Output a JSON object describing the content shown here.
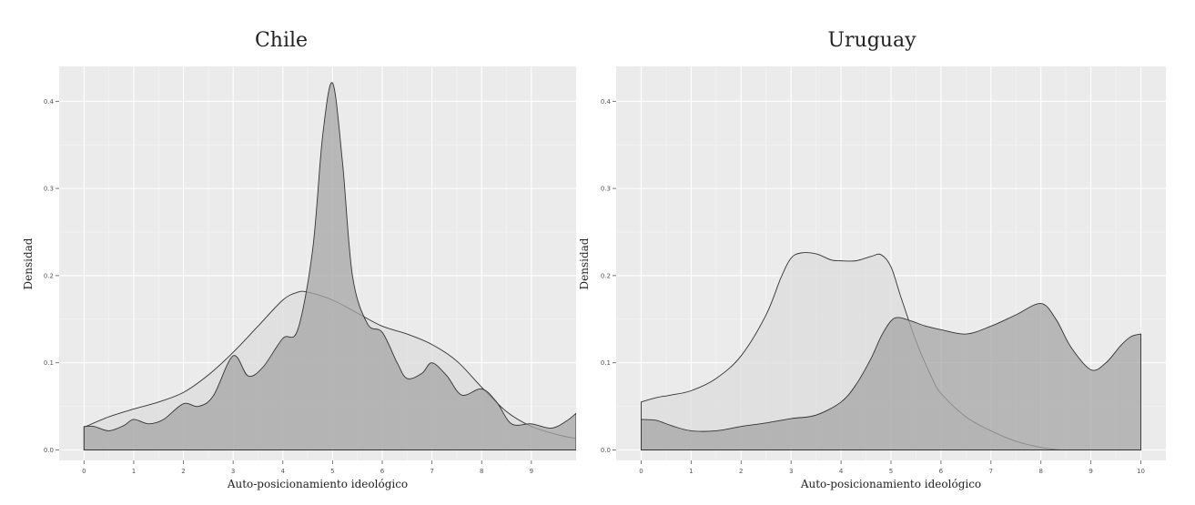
{
  "chart_data": [
    {
      "type": "area",
      "title": "Chile",
      "xlabel": "Auto-posicionamiento ideológico",
      "ylabel": "Densidad",
      "xlim": [
        -0.5,
        9.9
      ],
      "ylim": [
        -0.012,
        0.44
      ],
      "x_ticks": [
        0,
        1,
        2,
        3,
        4,
        5,
        6,
        7,
        8,
        9
      ],
      "y_ticks": [
        0.0,
        0.1,
        0.2,
        0.3,
        0.4
      ],
      "x_tick_labels": [
        "0",
        "1",
        "2",
        "3",
        "4",
        "5",
        "6",
        "7",
        "8",
        "9"
      ],
      "y_tick_labels": [
        "0.0",
        "0.1",
        "0.2",
        "0.3",
        "0.4"
      ],
      "grid": true,
      "series": [
        {
          "fill": "#dcdcdc",
          "x": [
            0,
            0.5,
            1,
            1.5,
            2,
            2.5,
            3,
            3.5,
            4,
            4.3,
            4.5,
            5,
            5.5,
            6,
            6.5,
            7,
            7.5,
            8,
            8.5,
            9,
            9.5,
            9.9
          ],
          "y": [
            0.026,
            0.038,
            0.047,
            0.055,
            0.066,
            0.086,
            0.112,
            0.142,
            0.172,
            0.181,
            0.181,
            0.172,
            0.157,
            0.142,
            0.133,
            0.121,
            0.102,
            0.072,
            0.044,
            0.027,
            0.018,
            0.013
          ]
        },
        {
          "fill": "#a6a6a6",
          "x": [
            0,
            0.2,
            0.5,
            0.8,
            1,
            1.3,
            1.6,
            2,
            2.3,
            2.6,
            3,
            3.3,
            3.6,
            4,
            4.3,
            4.6,
            4.8,
            5,
            5.2,
            5.4,
            5.7,
            6,
            6.3,
            6.5,
            6.8,
            7,
            7.3,
            7.6,
            8,
            8.3,
            8.6,
            9,
            9.4,
            9.7,
            9.9
          ],
          "y": [
            0.027,
            0.027,
            0.022,
            0.028,
            0.035,
            0.03,
            0.035,
            0.053,
            0.05,
            0.062,
            0.108,
            0.085,
            0.095,
            0.128,
            0.138,
            0.23,
            0.36,
            0.421,
            0.33,
            0.2,
            0.145,
            0.135,
            0.1,
            0.082,
            0.088,
            0.1,
            0.085,
            0.063,
            0.07,
            0.055,
            0.03,
            0.03,
            0.025,
            0.033,
            0.042
          ]
        }
      ]
    },
    {
      "type": "area",
      "title": "Uruguay",
      "xlabel": "Auto-posicionamiento ideológico",
      "ylabel": "Densidad",
      "xlim": [
        -0.5,
        10.5
      ],
      "ylim": [
        -0.012,
        0.44
      ],
      "x_ticks": [
        0,
        1,
        2,
        3,
        4,
        5,
        6,
        7,
        8,
        9,
        10
      ],
      "y_ticks": [
        0.0,
        0.1,
        0.2,
        0.3,
        0.4
      ],
      "x_tick_labels": [
        "0",
        "1",
        "2",
        "3",
        "4",
        "5",
        "6",
        "7",
        "8",
        "9",
        "10"
      ],
      "y_tick_labels": [
        "0.0",
        "0.1",
        "0.2",
        "0.3",
        "0.4"
      ],
      "grid": true,
      "series": [
        {
          "fill": "#dcdcdc",
          "x": [
            0,
            0.3,
            0.6,
            1,
            1.5,
            2,
            2.5,
            2.8,
            3,
            3.2,
            3.5,
            3.8,
            4,
            4.3,
            4.6,
            4.8,
            5,
            5.2,
            5.5,
            5.8,
            6,
            6.5,
            7,
            7.5,
            8,
            8.4
          ],
          "y": [
            0.055,
            0.06,
            0.063,
            0.068,
            0.082,
            0.108,
            0.155,
            0.198,
            0.22,
            0.226,
            0.225,
            0.218,
            0.217,
            0.217,
            0.222,
            0.224,
            0.21,
            0.175,
            0.125,
            0.085,
            0.065,
            0.038,
            0.022,
            0.01,
            0.003,
            0.0
          ]
        },
        {
          "fill": "#a6a6a6",
          "x": [
            0,
            0.3,
            0.6,
            1,
            1.5,
            2,
            2.5,
            3,
            3.5,
            4,
            4.3,
            4.6,
            4.8,
            5,
            5.15,
            5.4,
            5.7,
            6,
            6.5,
            7,
            7.5,
            8,
            8.3,
            8.6,
            9,
            9.3,
            9.6,
            9.8,
            10
          ],
          "y": [
            0.035,
            0.034,
            0.028,
            0.022,
            0.022,
            0.027,
            0.031,
            0.036,
            0.04,
            0.055,
            0.075,
            0.105,
            0.13,
            0.148,
            0.152,
            0.148,
            0.142,
            0.138,
            0.133,
            0.142,
            0.155,
            0.168,
            0.15,
            0.118,
            0.092,
            0.1,
            0.12,
            0.13,
            0.133
          ]
        }
      ]
    }
  ]
}
